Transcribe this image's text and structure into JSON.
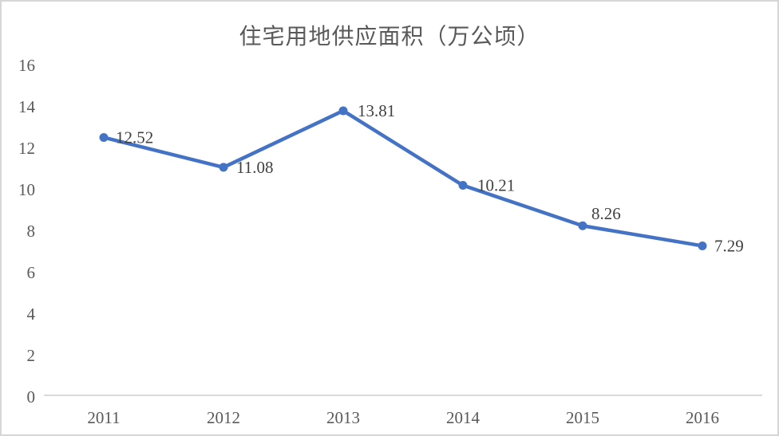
{
  "chart_data": {
    "type": "line",
    "title": "住宅用地供应面积（万公顷）",
    "categories": [
      "2011",
      "2012",
      "2013",
      "2014",
      "2015",
      "2016"
    ],
    "series": [
      {
        "name": "住宅用地供应面积",
        "values": [
          12.52,
          11.08,
          13.81,
          10.21,
          8.26,
          7.29
        ],
        "data_labels": [
          "12.52",
          "11.08",
          "13.81",
          "10.21",
          "8.26",
          "7.29"
        ]
      }
    ],
    "xlabel": "",
    "ylabel": "",
    "ylim": [
      0,
      16
    ],
    "yticks": [
      0,
      2,
      4,
      6,
      8,
      10,
      12,
      14,
      16
    ],
    "grid": false,
    "legend": "none",
    "colors": {
      "series": "#4472C4",
      "axis_line": "#d9d9d9",
      "tick_text": "#595959",
      "data_label_text": "#404040",
      "background": "#ffffff",
      "frame_border": "#d6d6d6"
    }
  }
}
